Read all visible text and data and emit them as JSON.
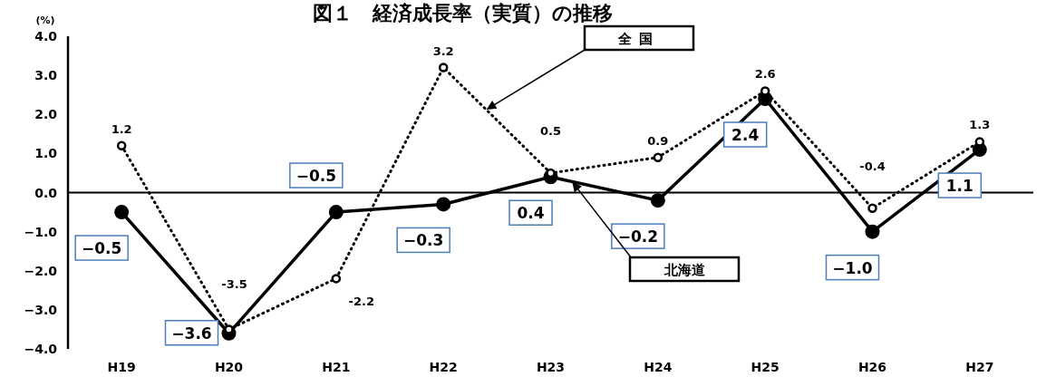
{
  "chart_data": {
    "type": "line",
    "title": "図１　経済成長率（実質）の推移",
    "ylabel": "(%)",
    "categories": [
      "H19",
      "H20",
      "H21",
      "H22",
      "H23",
      "H24",
      "H25",
      "H26",
      "H27"
    ],
    "ylim": [
      -4,
      4
    ],
    "yticks": [
      {
        "value": -4,
        "label": "−4.0"
      },
      {
        "value": -3,
        "label": "−3.0"
      },
      {
        "value": -2,
        "label": "−2.0"
      },
      {
        "value": -1,
        "label": "−1.0"
      },
      {
        "value": 0,
        "label": "0.0"
      },
      {
        "value": 1,
        "label": "1.0"
      },
      {
        "value": 2,
        "label": "2.0"
      },
      {
        "value": 3,
        "label": "3.0"
      },
      {
        "value": 4,
        "label": "4.0"
      }
    ],
    "marker": "circle",
    "series": [
      {
        "name": "北海道",
        "color": "#000000",
        "line_style": "solid",
        "values": [
          -0.5,
          -3.6,
          -0.5,
          -0.3,
          0.4,
          -0.2,
          2.4,
          -1.0,
          1.1
        ],
        "value_labels": [
          "−0.5",
          "−3.6",
          "−0.5",
          "−0.3",
          "0.4",
          "−0.2",
          "2.4",
          "−1.0",
          "1.1"
        ]
      },
      {
        "name": "全国",
        "color": "#000000",
        "line_style": "dotted",
        "values": [
          1.2,
          -3.5,
          -2.2,
          3.2,
          0.5,
          0.9,
          2.6,
          -0.4,
          1.3
        ],
        "value_labels": [
          "1.2",
          "-3.5",
          "-2.2",
          "3.2",
          "0.5",
          "0.9",
          "2.6",
          "-0.4",
          "1.3"
        ]
      }
    ]
  }
}
